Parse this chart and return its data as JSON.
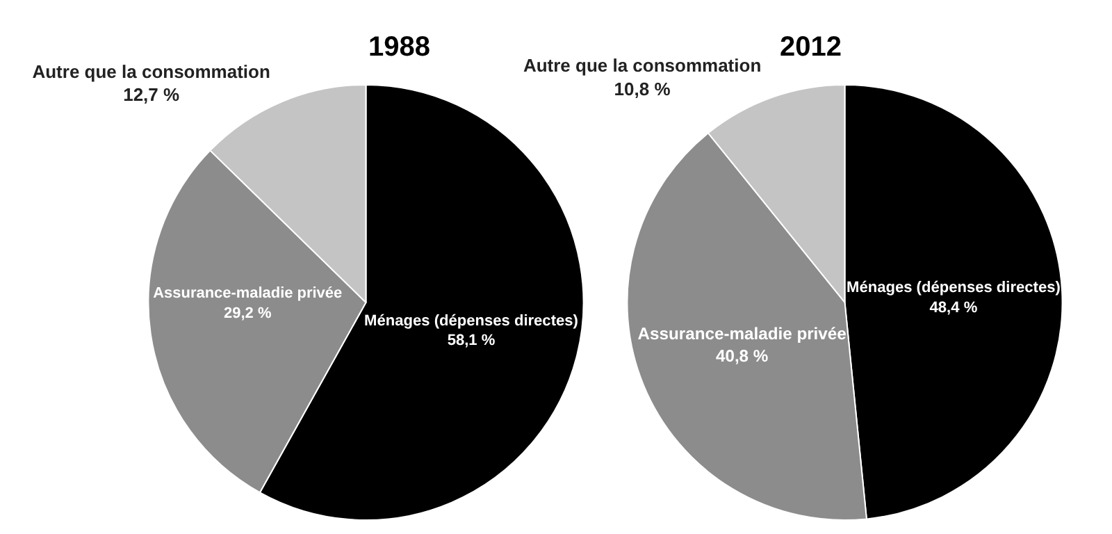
{
  "chart_data": [
    {
      "type": "pie",
      "title": "1988",
      "categories": [
        "Ménages (dépenses directes)",
        "Assurance-maladie privée",
        "Autre que la consommation"
      ],
      "values": [
        58.1,
        29.2,
        12.7
      ],
      "value_labels": [
        "58,1 %",
        "29,2 %",
        "12,7 %"
      ],
      "colors": [
        "#000000",
        "#8c8c8c",
        "#c4c4c4"
      ],
      "legend": false
    },
    {
      "type": "pie",
      "title": "2012",
      "categories": [
        "Ménages (dépenses directes)",
        "Assurance-maladie privée",
        "Autre que la consommation"
      ],
      "values": [
        48.4,
        40.8,
        10.8
      ],
      "value_labels": [
        "48,4 %",
        "40,8 %",
        "10,8 %"
      ],
      "colors": [
        "#000000",
        "#8c8c8c",
        "#c4c4c4"
      ],
      "legend": false
    }
  ]
}
